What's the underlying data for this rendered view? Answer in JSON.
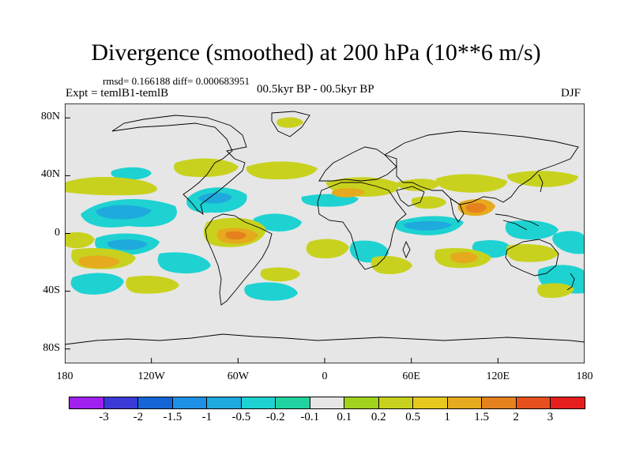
{
  "title": "Divergence (smoothed) at 200 hPa (10**6 m/s)",
  "stats_line": "rmsd= 0.166188 diff= 0.000683951",
  "experiment": "Expt = temlB1-temlB",
  "period": "00.5kyr BP - 00.5kyr BP",
  "season": "DJF",
  "map": {
    "background": "#e6e6e6",
    "lat_labels": [
      "80N",
      "40N",
      "0",
      "40S",
      "80S"
    ],
    "lat_values": [
      80,
      40,
      0,
      -40,
      -80
    ],
    "lon_labels": [
      "180",
      "120W",
      "60W",
      "0",
      "60E",
      "120E",
      "180"
    ],
    "lon_values": [
      -180,
      -120,
      -60,
      0,
      60,
      120,
      180
    ]
  },
  "colorbar": {
    "colors": [
      "#a020f0",
      "#3a3ad6",
      "#1565d6",
      "#1e90e6",
      "#1eaadc",
      "#1ed2d2",
      "#20d2a0",
      "#e6e6e6",
      "#a0d21e",
      "#c8d21e",
      "#e6c81e",
      "#e6aa1e",
      "#e6821e",
      "#e6501e",
      "#e61e1e"
    ],
    "labels": [
      "-3",
      "-2",
      "-1.5",
      "-1",
      "-0.5",
      "-0.2",
      "-0.1",
      "0.1",
      "0.2",
      "0.5",
      "1",
      "1.5",
      "2",
      "3"
    ]
  }
}
